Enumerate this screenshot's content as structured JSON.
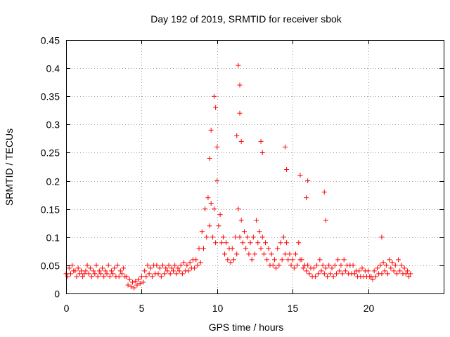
{
  "chart_data": {
    "type": "scatter",
    "title": "Day 192 of 2019, SRMTID for receiver sbok",
    "xlabel": "GPS time / hours",
    "ylabel": "SRMTID / TECUs",
    "xlim": [
      0,
      25
    ],
    "ylim": [
      0,
      0.45
    ],
    "xticks": [
      0,
      5,
      10,
      15,
      20
    ],
    "xtick_labels": [
      "0",
      "5",
      "10",
      "15",
      "20"
    ],
    "yticks": [
      0,
      0.05,
      0.1,
      0.15,
      0.2,
      0.25,
      0.3,
      0.35,
      0.4,
      0.45
    ],
    "ytick_labels": [
      "0",
      "0.05",
      "0.1",
      "0.15",
      "0.2",
      "0.25",
      "0.3",
      "0.35",
      "0.4",
      "0.45"
    ],
    "grid": true,
    "marker": "+",
    "series": [
      {
        "name": "SRMTID",
        "color": "#ff0000",
        "x": [
          0.0,
          0.2,
          0.4,
          0.6,
          0.8,
          1.0,
          1.2,
          1.4,
          1.6,
          1.8,
          2.0,
          2.2,
          2.4,
          2.6,
          2.8,
          3.0,
          3.2,
          3.4,
          3.6,
          3.8,
          4.0,
          4.2,
          4.4,
          4.6,
          4.8,
          5.0,
          5.2,
          5.4,
          5.6,
          5.8,
          6.0,
          6.2,
          6.4,
          6.6,
          6.8,
          7.0,
          7.2,
          7.4,
          7.6,
          7.8,
          8.0,
          8.2,
          8.4,
          8.6,
          8.8,
          9.0,
          9.2,
          9.4,
          9.6,
          9.8,
          10.0,
          10.2,
          10.4,
          10.6,
          10.8,
          11.0,
          11.2,
          11.4,
          11.6,
          11.8,
          12.0,
          12.2,
          12.4,
          12.6,
          12.8,
          13.0,
          13.2,
          13.4,
          13.6,
          13.8,
          14.0,
          14.2,
          14.4,
          14.6,
          14.8,
          15.0,
          15.2,
          15.4,
          15.6,
          15.8,
          16.0,
          16.2,
          16.4,
          16.6,
          16.8,
          17.0,
          17.2,
          17.4,
          17.6,
          17.8,
          18.0,
          18.2,
          18.4,
          18.6,
          18.8,
          19.0,
          19.2,
          19.4,
          19.6,
          19.8,
          20.0,
          20.2,
          20.4,
          20.6,
          20.8,
          21.0,
          21.2,
          21.4,
          21.6,
          21.8,
          22.0,
          22.2,
          22.4,
          22.6,
          22.8,
          0.1,
          0.3,
          0.5,
          0.7,
          0.9,
          1.1,
          1.3,
          1.5,
          1.7,
          1.9,
          2.1,
          2.3,
          2.5,
          2.7,
          2.9,
          3.1,
          3.3,
          3.5,
          3.7,
          3.9,
          4.1,
          4.3,
          4.5,
          4.7,
          4.9,
          5.1,
          5.3,
          5.5,
          5.7,
          5.9,
          6.1,
          6.3,
          6.5,
          6.7,
          6.9,
          7.1,
          7.3,
          7.5,
          7.7,
          7.9,
          8.1,
          8.3,
          8.5,
          8.7,
          8.9,
          9.1,
          9.3,
          9.5,
          9.7,
          9.9,
          10.1,
          10.3,
          10.5,
          10.7,
          10.9,
          11.1,
          11.3,
          11.5,
          11.7,
          11.9,
          12.1,
          12.3,
          12.5,
          12.7,
          12.9,
          13.1,
          13.3,
          13.5,
          13.7,
          13.9,
          14.1,
          14.3,
          14.5,
          14.7,
          14.9,
          15.1,
          15.3,
          15.5,
          15.7,
          15.9,
          16.1,
          16.3,
          16.5,
          16.7,
          16.9,
          17.1,
          17.3,
          17.5,
          17.7,
          17.9,
          18.1,
          18.3,
          18.5,
          18.7,
          18.9,
          19.1,
          19.3,
          19.5,
          19.7,
          19.9,
          20.1,
          20.3,
          20.5,
          20.7,
          20.9,
          21.1,
          21.3,
          21.5,
          21.7,
          21.9,
          22.1,
          22.3,
          22.5,
          22.7,
          9.6,
          9.8,
          9.9,
          10.0,
          11.4,
          11.5,
          11.5,
          11.6,
          12.9,
          13.0,
          14.5,
          14.6,
          15.5,
          15.9,
          16.0,
          17.1,
          17.2,
          20.9,
          9.5,
          11.3
        ],
        "y": [
          0.035,
          0.045,
          0.05,
          0.04,
          0.045,
          0.04,
          0.035,
          0.05,
          0.045,
          0.04,
          0.05,
          0.04,
          0.045,
          0.04,
          0.05,
          0.04,
          0.045,
          0.05,
          0.04,
          0.045,
          0.03,
          0.025,
          0.02,
          0.022,
          0.025,
          0.03,
          0.04,
          0.05,
          0.045,
          0.05,
          0.05,
          0.045,
          0.05,
          0.045,
          0.05,
          0.045,
          0.05,
          0.045,
          0.05,
          0.055,
          0.05,
          0.055,
          0.06,
          0.06,
          0.08,
          0.11,
          0.15,
          0.17,
          0.16,
          0.15,
          0.2,
          0.14,
          0.1,
          0.09,
          0.08,
          0.08,
          0.1,
          0.15,
          0.13,
          0.11,
          0.1,
          0.09,
          0.1,
          0.13,
          0.11,
          0.1,
          0.09,
          0.08,
          0.07,
          0.06,
          0.08,
          0.09,
          0.1,
          0.09,
          0.07,
          0.06,
          0.07,
          0.09,
          0.06,
          0.05,
          0.05,
          0.045,
          0.045,
          0.05,
          0.06,
          0.05,
          0.045,
          0.05,
          0.045,
          0.05,
          0.06,
          0.05,
          0.06,
          0.05,
          0.05,
          0.05,
          0.04,
          0.04,
          0.045,
          0.04,
          0.04,
          0.03,
          0.04,
          0.045,
          0.05,
          0.055,
          0.05,
          0.06,
          0.055,
          0.05,
          0.06,
          0.05,
          0.045,
          0.04,
          0.035,
          0.03,
          0.035,
          0.04,
          0.03,
          0.035,
          0.03,
          0.04,
          0.035,
          0.03,
          0.035,
          0.03,
          0.035,
          0.03,
          0.035,
          0.03,
          0.035,
          0.03,
          0.03,
          0.035,
          0.03,
          0.015,
          0.012,
          0.01,
          0.015,
          0.018,
          0.02,
          0.03,
          0.035,
          0.03,
          0.035,
          0.035,
          0.03,
          0.035,
          0.04,
          0.035,
          0.04,
          0.035,
          0.04,
          0.035,
          0.04,
          0.04,
          0.045,
          0.045,
          0.05,
          0.055,
          0.08,
          0.1,
          0.12,
          0.1,
          0.09,
          0.12,
          0.09,
          0.07,
          0.06,
          0.055,
          0.06,
          0.07,
          0.1,
          0.09,
          0.08,
          0.07,
          0.06,
          0.07,
          0.09,
          0.08,
          0.07,
          0.06,
          0.05,
          0.05,
          0.045,
          0.05,
          0.06,
          0.07,
          0.06,
          0.05,
          0.045,
          0.05,
          0.06,
          0.045,
          0.04,
          0.035,
          0.03,
          0.03,
          0.035,
          0.04,
          0.035,
          0.03,
          0.035,
          0.03,
          0.035,
          0.04,
          0.035,
          0.04,
          0.035,
          0.035,
          0.035,
          0.03,
          0.03,
          0.03,
          0.03,
          0.03,
          0.025,
          0.03,
          0.035,
          0.035,
          0.04,
          0.035,
          0.045,
          0.04,
          0.035,
          0.04,
          0.035,
          0.035,
          0.03,
          0.29,
          0.35,
          0.33,
          0.26,
          0.405,
          0.37,
          0.32,
          0.27,
          0.27,
          0.25,
          0.26,
          0.22,
          0.21,
          0.17,
          0.2,
          0.18,
          0.13,
          0.1,
          0.24,
          0.28
        ]
      }
    ]
  }
}
